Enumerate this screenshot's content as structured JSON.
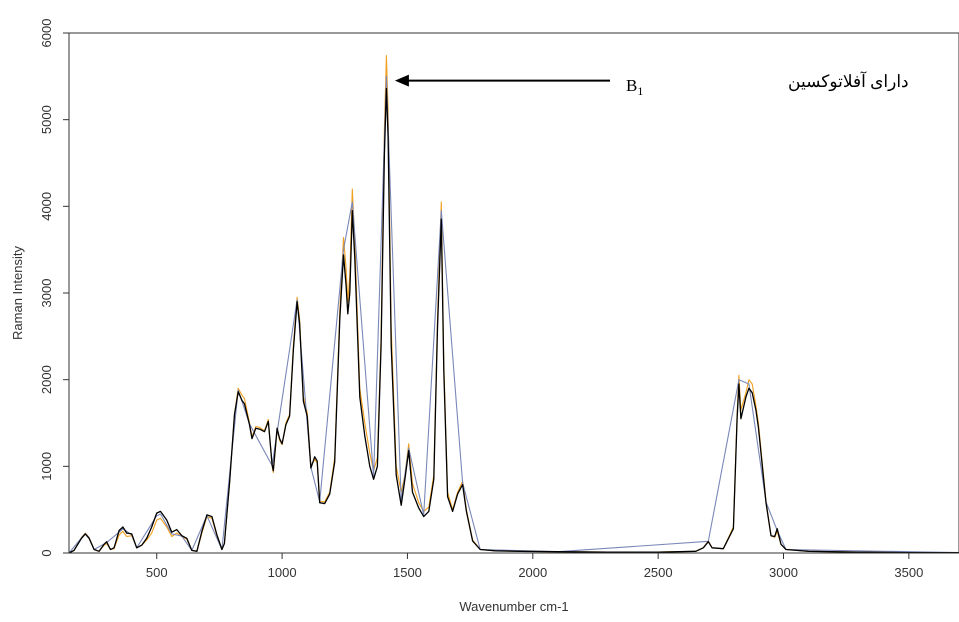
{
  "chart_data": {
    "type": "line",
    "title": "",
    "xlabel": "Wavenumber cm-1",
    "ylabel": "Raman Intensity",
    "xlim": [
      150,
      3700
    ],
    "ylim": [
      0,
      6000
    ],
    "xticks": [
      500,
      1000,
      1500,
      2000,
      2500,
      3000,
      3500
    ],
    "yticks": [
      0,
      1000,
      2000,
      3000,
      4000,
      5000,
      6000
    ],
    "grid": false,
    "legend": "none",
    "annotation": {
      "text": "دارای آفلاتوکسین",
      "label_main": "B",
      "label_sub": "1",
      "arrow_to": [
        1450,
        5450
      ]
    },
    "series": [
      {
        "color": "#f0a020",
        "points": [
          [
            150,
            0
          ],
          [
            170,
            30
          ],
          [
            200,
            180
          ],
          [
            215,
            230
          ],
          [
            230,
            180
          ],
          [
            250,
            40
          ],
          [
            270,
            20
          ],
          [
            290,
            90
          ],
          [
            300,
            110
          ],
          [
            315,
            40
          ],
          [
            330,
            50
          ],
          [
            350,
            210
          ],
          [
            365,
            250
          ],
          [
            380,
            190
          ],
          [
            400,
            200
          ],
          [
            420,
            60
          ],
          [
            440,
            90
          ],
          [
            460,
            150
          ],
          [
            480,
            230
          ],
          [
            500,
            380
          ],
          [
            515,
            400
          ],
          [
            540,
            300
          ],
          [
            560,
            190
          ],
          [
            580,
            230
          ],
          [
            600,
            190
          ],
          [
            620,
            160
          ],
          [
            640,
            30
          ],
          [
            660,
            20
          ],
          [
            680,
            230
          ],
          [
            700,
            420
          ],
          [
            720,
            400
          ],
          [
            740,
            200
          ],
          [
            760,
            40
          ],
          [
            770,
            110
          ],
          [
            790,
            800
          ],
          [
            810,
            1600
          ],
          [
            825,
            1900
          ],
          [
            840,
            1820
          ],
          [
            850,
            1780
          ],
          [
            870,
            1500
          ],
          [
            880,
            1340
          ],
          [
            895,
            1460
          ],
          [
            910,
            1450
          ],
          [
            930,
            1410
          ],
          [
            945,
            1540
          ],
          [
            960,
            1000
          ],
          [
            965,
            930
          ],
          [
            980,
            1420
          ],
          [
            990,
            1300
          ],
          [
            1000,
            1250
          ],
          [
            1015,
            1500
          ],
          [
            1030,
            1600
          ],
          [
            1045,
            2400
          ],
          [
            1060,
            2950
          ],
          [
            1070,
            2700
          ],
          [
            1085,
            1800
          ],
          [
            1100,
            1620
          ],
          [
            1115,
            1000
          ],
          [
            1130,
            1080
          ],
          [
            1140,
            1040
          ],
          [
            1150,
            600
          ],
          [
            1170,
            590
          ],
          [
            1190,
            700
          ],
          [
            1210,
            1100
          ],
          [
            1230,
            2800
          ],
          [
            1245,
            3640
          ],
          [
            1255,
            3300
          ],
          [
            1262,
            2900
          ],
          [
            1270,
            3200
          ],
          [
            1280,
            4200
          ],
          [
            1290,
            3600
          ],
          [
            1310,
            1900
          ],
          [
            1330,
            1500
          ],
          [
            1350,
            1150
          ],
          [
            1365,
            950
          ],
          [
            1380,
            1100
          ],
          [
            1395,
            2500
          ],
          [
            1408,
            4900
          ],
          [
            1416,
            5740
          ],
          [
            1423,
            5100
          ],
          [
            1435,
            2600
          ],
          [
            1455,
            1000
          ],
          [
            1475,
            700
          ],
          [
            1490,
            900
          ],
          [
            1505,
            1260
          ],
          [
            1520,
            800
          ],
          [
            1545,
            580
          ],
          [
            1565,
            480
          ],
          [
            1585,
            530
          ],
          [
            1605,
            900
          ],
          [
            1620,
            2700
          ],
          [
            1635,
            4050
          ],
          [
            1645,
            2200
          ],
          [
            1660,
            700
          ],
          [
            1680,
            500
          ],
          [
            1700,
            700
          ],
          [
            1720,
            830
          ],
          [
            1735,
            500
          ],
          [
            1760,
            150
          ],
          [
            1790,
            40
          ],
          [
            1850,
            25
          ],
          [
            1950,
            20
          ],
          [
            2100,
            15
          ],
          [
            2300,
            10
          ],
          [
            2500,
            10
          ],
          [
            2650,
            20
          ],
          [
            2680,
            60
          ],
          [
            2700,
            140
          ],
          [
            2715,
            60
          ],
          [
            2760,
            50
          ],
          [
            2800,
            300
          ],
          [
            2815,
            1600
          ],
          [
            2822,
            2050
          ],
          [
            2830,
            1650
          ],
          [
            2850,
            1850
          ],
          [
            2862,
            2000
          ],
          [
            2875,
            1950
          ],
          [
            2890,
            1700
          ],
          [
            2900,
            1500
          ],
          [
            2930,
            600
          ],
          [
            2950,
            200
          ],
          [
            2965,
            180
          ],
          [
            2975,
            250
          ],
          [
            2990,
            100
          ],
          [
            3010,
            40
          ],
          [
            3100,
            20
          ],
          [
            3300,
            10
          ],
          [
            3500,
            5
          ],
          [
            3700,
            5
          ]
        ]
      },
      {
        "color": "#000000",
        "points": [
          [
            150,
            0
          ],
          [
            170,
            30
          ],
          [
            200,
            170
          ],
          [
            215,
            220
          ],
          [
            230,
            170
          ],
          [
            250,
            40
          ],
          [
            270,
            20
          ],
          [
            290,
            100
          ],
          [
            300,
            130
          ],
          [
            315,
            40
          ],
          [
            330,
            60
          ],
          [
            350,
            260
          ],
          [
            365,
            300
          ],
          [
            380,
            230
          ],
          [
            400,
            220
          ],
          [
            420,
            60
          ],
          [
            440,
            90
          ],
          [
            460,
            170
          ],
          [
            480,
            300
          ],
          [
            500,
            460
          ],
          [
            515,
            480
          ],
          [
            540,
            380
          ],
          [
            560,
            240
          ],
          [
            580,
            270
          ],
          [
            600,
            200
          ],
          [
            620,
            170
          ],
          [
            640,
            30
          ],
          [
            660,
            20
          ],
          [
            680,
            250
          ],
          [
            700,
            440
          ],
          [
            720,
            420
          ],
          [
            740,
            210
          ],
          [
            760,
            40
          ],
          [
            770,
            110
          ],
          [
            790,
            800
          ],
          [
            810,
            1600
          ],
          [
            825,
            1860
          ],
          [
            840,
            1760
          ],
          [
            850,
            1720
          ],
          [
            870,
            1480
          ],
          [
            880,
            1320
          ],
          [
            895,
            1440
          ],
          [
            910,
            1430
          ],
          [
            930,
            1400
          ],
          [
            945,
            1520
          ],
          [
            960,
            1020
          ],
          [
            965,
            950
          ],
          [
            980,
            1440
          ],
          [
            990,
            1320
          ],
          [
            1000,
            1260
          ],
          [
            1015,
            1480
          ],
          [
            1030,
            1580
          ],
          [
            1045,
            2350
          ],
          [
            1060,
            2900
          ],
          [
            1070,
            2650
          ],
          [
            1085,
            1750
          ],
          [
            1100,
            1580
          ],
          [
            1115,
            980
          ],
          [
            1130,
            1110
          ],
          [
            1140,
            1060
          ],
          [
            1150,
            580
          ],
          [
            1170,
            570
          ],
          [
            1190,
            680
          ],
          [
            1210,
            1050
          ],
          [
            1230,
            2700
          ],
          [
            1245,
            3440
          ],
          [
            1255,
            3100
          ],
          [
            1262,
            2760
          ],
          [
            1270,
            3000
          ],
          [
            1280,
            3950
          ],
          [
            1290,
            3400
          ],
          [
            1310,
            1800
          ],
          [
            1330,
            1350
          ],
          [
            1350,
            1000
          ],
          [
            1365,
            850
          ],
          [
            1380,
            1000
          ],
          [
            1395,
            2400
          ],
          [
            1408,
            4600
          ],
          [
            1416,
            5360
          ],
          [
            1423,
            4800
          ],
          [
            1435,
            2400
          ],
          [
            1455,
            900
          ],
          [
            1475,
            550
          ],
          [
            1490,
            850
          ],
          [
            1505,
            1180
          ],
          [
            1520,
            700
          ],
          [
            1545,
            520
          ],
          [
            1565,
            420
          ],
          [
            1585,
            480
          ],
          [
            1605,
            850
          ],
          [
            1620,
            2600
          ],
          [
            1635,
            3850
          ],
          [
            1645,
            2100
          ],
          [
            1660,
            650
          ],
          [
            1680,
            480
          ],
          [
            1700,
            680
          ],
          [
            1720,
            790
          ],
          [
            1735,
            480
          ],
          [
            1760,
            140
          ],
          [
            1790,
            40
          ],
          [
            1850,
            25
          ],
          [
            1950,
            20
          ],
          [
            2100,
            15
          ],
          [
            2300,
            10
          ],
          [
            2500,
            10
          ],
          [
            2650,
            20
          ],
          [
            2680,
            60
          ],
          [
            2700,
            130
          ],
          [
            2715,
            60
          ],
          [
            2760,
            50
          ],
          [
            2800,
            280
          ],
          [
            2815,
            1550
          ],
          [
            2822,
            1950
          ],
          [
            2830,
            1550
          ],
          [
            2850,
            1800
          ],
          [
            2862,
            1900
          ],
          [
            2875,
            1850
          ],
          [
            2890,
            1650
          ],
          [
            2900,
            1450
          ],
          [
            2930,
            580
          ],
          [
            2950,
            200
          ],
          [
            2965,
            190
          ],
          [
            2975,
            280
          ],
          [
            2990,
            100
          ],
          [
            3010,
            40
          ],
          [
            3100,
            20
          ],
          [
            3300,
            10
          ],
          [
            3500,
            5
          ],
          [
            3700,
            5
          ]
        ]
      },
      {
        "color": "#7a88b8",
        "points": [
          [
            150,
            0
          ],
          [
            200,
            175
          ],
          [
            215,
            225
          ],
          [
            230,
            175
          ],
          [
            250,
            40
          ],
          [
            300,
            120
          ],
          [
            350,
            240
          ],
          [
            365,
            280
          ],
          [
            400,
            210
          ],
          [
            420,
            60
          ],
          [
            500,
            430
          ],
          [
            515,
            450
          ],
          [
            560,
            220
          ],
          [
            600,
            195
          ],
          [
            640,
            30
          ],
          [
            700,
            430
          ],
          [
            760,
            40
          ],
          [
            825,
            1880
          ],
          [
            870,
            1490
          ],
          [
            960,
            1010
          ],
          [
            1060,
            2920
          ],
          [
            1115,
            990
          ],
          [
            1150,
            590
          ],
          [
            1245,
            3500
          ],
          [
            1280,
            4050
          ],
          [
            1365,
            880
          ],
          [
            1416,
            5500
          ],
          [
            1475,
            600
          ],
          [
            1505,
            1210
          ],
          [
            1565,
            440
          ],
          [
            1635,
            3950
          ],
          [
            1720,
            810
          ],
          [
            1790,
            40
          ],
          [
            2100,
            15
          ],
          [
            2700,
            135
          ],
          [
            2822,
            2000
          ],
          [
            2862,
            1950
          ],
          [
            2930,
            590
          ],
          [
            2975,
            260
          ],
          [
            3010,
            40
          ],
          [
            3700,
            5
          ]
        ]
      }
    ]
  }
}
